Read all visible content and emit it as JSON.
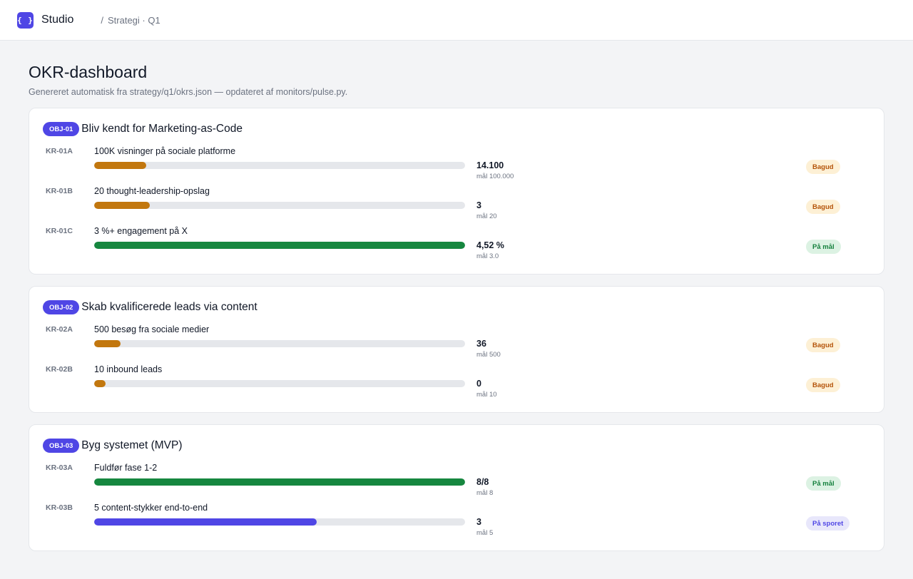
{
  "app": {
    "logo_text": "{ }",
    "name": "Studio",
    "breadcrumb_sep": "/",
    "breadcrumb": "Strategi · Q1"
  },
  "page": {
    "title": "OKR-dashboard",
    "subtitle": "Genereret automatisk fra strategy/q1/okrs.json — opdateret af monitors/pulse.py."
  },
  "colors": {
    "accent": "#4f46e5",
    "behind": "#c2770e",
    "on_target": "#16873f",
    "on_track": "#4f46e5",
    "track": "#e5e7eb"
  },
  "objectives": [
    {
      "badge": "OBJ-01",
      "title": "Bliv kendt for Marketing-as-Code",
      "krs": [
        {
          "id": "KR-01A",
          "label": "100K visninger på sociale platforme",
          "value": "14.100",
          "target": "mål 100.000",
          "progress": 0.141,
          "status": "Bagud",
          "status_kind": "behind"
        },
        {
          "id": "KR-01B",
          "label": "20 thought-leadership-opslag",
          "value": "3",
          "target": "mål 20",
          "progress": 0.15,
          "status": "Bagud",
          "status_kind": "behind"
        },
        {
          "id": "KR-01C",
          "label": "3 %+ engagement på X",
          "value": "4,52 %",
          "target": "mål 3.0",
          "progress": 1.0,
          "status": "På mål",
          "status_kind": "on_target"
        }
      ]
    },
    {
      "badge": "OBJ-02",
      "title": "Skab kvalificerede leads via content",
      "krs": [
        {
          "id": "KR-02A",
          "label": "500 besøg fra sociale medier",
          "value": "36",
          "target": "mål 500",
          "progress": 0.072,
          "status": "Bagud",
          "status_kind": "behind"
        },
        {
          "id": "KR-02B",
          "label": "10 inbound leads",
          "value": "0",
          "target": "mål 10",
          "progress": 0.0,
          "status": "Bagud",
          "status_kind": "behind"
        }
      ]
    },
    {
      "badge": "OBJ-03",
      "title": "Byg systemet (MVP)",
      "krs": [
        {
          "id": "KR-03A",
          "label": "Fuldfør fase 1-2",
          "value": "8/8",
          "target": "mål 8",
          "progress": 1.0,
          "status": "På mål",
          "status_kind": "on_target"
        },
        {
          "id": "KR-03B",
          "label": "5 content-stykker end-to-end",
          "value": "3",
          "target": "mål 5",
          "progress": 0.6,
          "status": "På sporet",
          "status_kind": "on_track"
        }
      ]
    }
  ]
}
